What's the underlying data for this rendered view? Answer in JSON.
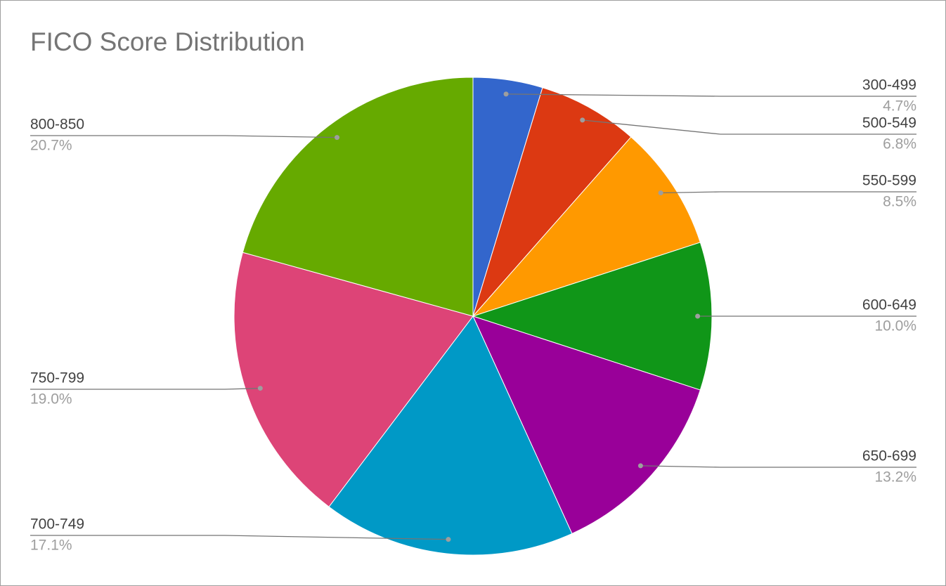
{
  "chart_data": {
    "type": "pie",
    "title": "FICO Score Distribution",
    "categories": [
      "300-499",
      "500-549",
      "550-599",
      "600-649",
      "650-699",
      "700-749",
      "750-799",
      "800-850"
    ],
    "values": [
      4.7,
      6.8,
      8.5,
      10.0,
      13.2,
      17.1,
      19.0,
      20.7
    ],
    "value_labels": [
      "4.7%",
      "6.8%",
      "8.5%",
      "10.0%",
      "13.2%",
      "17.1%",
      "19.0%",
      "20.7%"
    ],
    "colors": [
      "#3366cc",
      "#dc3912",
      "#ff9900",
      "#109618",
      "#990099",
      "#0099c6",
      "#dd4477",
      "#66aa00"
    ]
  }
}
